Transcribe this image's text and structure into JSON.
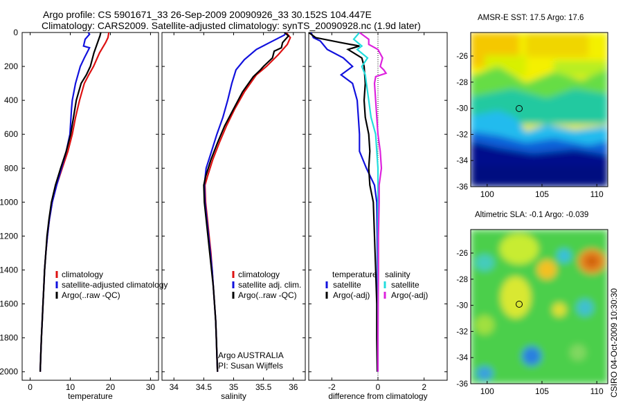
{
  "figure": {
    "title_line1": "Argo profile: CS 5901671_33 26-Sep-2009 20090926_33 30.152S 104.447E",
    "title_line2": "Climatology: CARS2009. Satellite-adjusted climatology: synTS_20090928.nc (1.9d later)",
    "credit": "CSIRO 04-Oct-2009 10:30:30",
    "argo_note": [
      "Argo AUSTRALIA",
      "PI: Susan Wijffels"
    ]
  },
  "colors": {
    "climatology": "#dd1111",
    "satellite": "#1111dd",
    "argo": "#000000",
    "sal_satellite": "#22dddd",
    "sal_argo": "#dd22dd"
  },
  "chart_data": [
    {
      "id": "temperature",
      "type": "line",
      "xlabel": "temperature",
      "ylabel": "",
      "xlim": [
        -2,
        32
      ],
      "ylim": [
        2050,
        0
      ],
      "xticks": [
        0,
        10,
        20,
        30
      ],
      "yticks": [
        0,
        200,
        400,
        600,
        800,
        1000,
        1200,
        1400,
        1600,
        1800,
        2000
      ],
      "legend": [
        "climatology",
        "satellite-adjusted climatology",
        "Argo(..raw -QC)"
      ],
      "series": [
        {
          "name": "climatology",
          "color": "climatology",
          "points": [
            [
              19.6,
              0
            ],
            [
              19.4,
              30
            ],
            [
              18.8,
              60
            ],
            [
              17.3,
              120
            ],
            [
              15.8,
              200
            ],
            [
              14.6,
              250
            ],
            [
              13.5,
              300
            ],
            [
              12.3,
              400
            ],
            [
              11.3,
              500
            ],
            [
              10.5,
              600
            ],
            [
              9.4,
              700
            ],
            [
              8.0,
              800
            ],
            [
              6.6,
              900
            ],
            [
              5.5,
              1000
            ],
            [
              4.8,
              1100
            ],
            [
              4.3,
              1200
            ],
            [
              3.9,
              1300
            ],
            [
              3.6,
              1400
            ],
            [
              3.4,
              1500
            ],
            [
              3.2,
              1600
            ],
            [
              3.0,
              1700
            ],
            [
              2.8,
              1800
            ],
            [
              2.65,
              1900
            ],
            [
              2.5,
              2000
            ]
          ]
        },
        {
          "name": "satellite-adjusted climatology",
          "color": "satellite",
          "points": [
            [
              14.5,
              0
            ],
            [
              14.8,
              10
            ],
            [
              13.7,
              40
            ],
            [
              13.3,
              80
            ],
            [
              14.8,
              90
            ],
            [
              13.5,
              150
            ],
            [
              12.5,
              200
            ],
            [
              11.3,
              300
            ],
            [
              10.5,
              400
            ],
            [
              10.3,
              450
            ],
            [
              9.9,
              600
            ],
            [
              9.0,
              700
            ],
            [
              7.8,
              800
            ],
            [
              6.6,
              900
            ],
            [
              5.5,
              1000
            ],
            [
              4.8,
              1100
            ],
            [
              4.3,
              1200
            ],
            [
              3.9,
              1300
            ],
            [
              3.6,
              1400
            ],
            [
              3.4,
              1500
            ],
            [
              3.2,
              1600
            ],
            [
              3.0,
              1700
            ],
            [
              2.8,
              1800
            ],
            [
              2.65,
              1900
            ],
            [
              2.5,
              2000
            ]
          ]
        },
        {
          "name": "Argo(..raw -QC)",
          "color": "argo",
          "points": [
            [
              17.6,
              0
            ],
            [
              17.4,
              20
            ],
            [
              16.8,
              60
            ],
            [
              15.9,
              120
            ],
            [
              15.0,
              200
            ],
            [
              14.0,
              250
            ],
            [
              12.7,
              300
            ],
            [
              11.5,
              400
            ],
            [
              10.8,
              500
            ],
            [
              10.1,
              600
            ],
            [
              9.0,
              700
            ],
            [
              7.6,
              800
            ],
            [
              6.3,
              900
            ],
            [
              5.3,
              1000
            ],
            [
              4.7,
              1100
            ],
            [
              4.2,
              1200
            ],
            [
              3.9,
              1300
            ],
            [
              3.6,
              1400
            ],
            [
              3.4,
              1500
            ],
            [
              3.2,
              1600
            ],
            [
              3.0,
              1700
            ],
            [
              2.8,
              1800
            ],
            [
              2.65,
              1900
            ],
            [
              2.5,
              2000
            ]
          ]
        }
      ]
    },
    {
      "id": "salinity",
      "type": "line",
      "xlabel": "salinity",
      "ylabel": "",
      "xlim": [
        33.8,
        36.2
      ],
      "ylim": [
        2050,
        0
      ],
      "xticks": [
        34,
        34.5,
        35,
        35.5,
        36
      ],
      "yticks": [],
      "legend": [
        "climatology",
        "satellite adj. clim.",
        "Argo(..raw -QC)"
      ],
      "series": [
        {
          "name": "climatology",
          "color": "climatology",
          "points": [
            [
              35.88,
              0
            ],
            [
              35.95,
              30
            ],
            [
              35.9,
              70
            ],
            [
              35.75,
              130
            ],
            [
              35.55,
              200
            ],
            [
              35.38,
              250
            ],
            [
              35.18,
              350
            ],
            [
              35.02,
              450
            ],
            [
              34.88,
              550
            ],
            [
              34.76,
              650
            ],
            [
              34.65,
              750
            ],
            [
              34.56,
              850
            ],
            [
              34.52,
              900
            ],
            [
              34.53,
              1000
            ],
            [
              34.56,
              1100
            ],
            [
              34.59,
              1200
            ],
            [
              34.62,
              1300
            ],
            [
              34.64,
              1400
            ],
            [
              34.66,
              1500
            ],
            [
              34.68,
              1600
            ],
            [
              34.7,
              1700
            ],
            [
              34.71,
              1800
            ],
            [
              34.72,
              1900
            ],
            [
              34.73,
              2000
            ]
          ]
        },
        {
          "name": "satellite adj. clim.",
          "color": "satellite",
          "points": [
            [
              35.88,
              0
            ],
            [
              35.85,
              15
            ],
            [
              35.6,
              60
            ],
            [
              35.38,
              100
            ],
            [
              35.18,
              160
            ],
            [
              35.04,
              220
            ],
            [
              34.97,
              300
            ],
            [
              34.9,
              400
            ],
            [
              34.82,
              500
            ],
            [
              34.72,
              600
            ],
            [
              34.63,
              700
            ],
            [
              34.54,
              800
            ],
            [
              34.51,
              900
            ],
            [
              34.52,
              1000
            ],
            [
              34.55,
              1100
            ],
            [
              34.58,
              1200
            ],
            [
              34.61,
              1300
            ],
            [
              34.64,
              1400
            ],
            [
              34.66,
              1500
            ],
            [
              34.68,
              1600
            ],
            [
              34.7,
              1700
            ],
            [
              34.71,
              1800
            ],
            [
              34.72,
              1900
            ],
            [
              34.73,
              2000
            ]
          ]
        },
        {
          "name": "Argo(..raw -QC)",
          "color": "argo",
          "points": [
            [
              35.85,
              0
            ],
            [
              35.92,
              20
            ],
            [
              35.82,
              60
            ],
            [
              35.8,
              90
            ],
            [
              35.68,
              110
            ],
            [
              35.65,
              150
            ],
            [
              35.5,
              200
            ],
            [
              35.45,
              220
            ],
            [
              35.33,
              260
            ],
            [
              35.15,
              350
            ],
            [
              35.0,
              450
            ],
            [
              34.85,
              550
            ],
            [
              34.73,
              650
            ],
            [
              34.62,
              750
            ],
            [
              34.53,
              850
            ],
            [
              34.5,
              900
            ],
            [
              34.51,
              1000
            ],
            [
              34.54,
              1100
            ],
            [
              34.57,
              1200
            ],
            [
              34.6,
              1300
            ],
            [
              34.63,
              1400
            ],
            [
              34.66,
              1500
            ],
            [
              34.68,
              1600
            ],
            [
              34.7,
              1700
            ],
            [
              34.71,
              1800
            ],
            [
              34.72,
              1900
            ],
            [
              34.73,
              2000
            ]
          ]
        }
      ]
    },
    {
      "id": "difference",
      "type": "line",
      "xlabel": "difference from climatology",
      "ylabel": "",
      "xlim": [
        -3,
        3
      ],
      "ylim": [
        2050,
        0
      ],
      "xticks": [
        -2,
        0,
        2
      ],
      "yticks": [],
      "zero_line": "dotted",
      "legend_groups": [
        {
          "heading": "temperature",
          "items": [
            "satellite",
            "Argo(-adj)"
          ]
        },
        {
          "heading": "salinity",
          "items": [
            "satellite",
            "Argo(-adj)"
          ]
        }
      ],
      "series": [
        {
          "name": "satellite",
          "group": "temperature",
          "color": "satellite",
          "points": [
            [
              -2.9,
              0
            ],
            [
              -2.8,
              30
            ],
            [
              -2.5,
              50
            ],
            [
              -2.2,
              100
            ],
            [
              -1.5,
              150
            ],
            [
              -1.1,
              200
            ],
            [
              -1.6,
              250
            ],
            [
              -1.1,
              300
            ],
            [
              -0.9,
              400
            ],
            [
              -0.85,
              500
            ],
            [
              -0.8,
              600
            ],
            [
              -0.8,
              700
            ],
            [
              -0.5,
              800
            ],
            [
              -0.15,
              900
            ],
            [
              -0.05,
              1000
            ],
            [
              -0.03,
              1200
            ],
            [
              -0.02,
              1400
            ],
            [
              -0.02,
              1600
            ],
            [
              -0.01,
              1800
            ],
            [
              -0.01,
              2000
            ]
          ]
        },
        {
          "name": "Argo(-adj)",
          "group": "temperature",
          "color": "argo",
          "points": [
            [
              -3.0,
              0
            ],
            [
              -2.7,
              30
            ],
            [
              -1.6,
              60
            ],
            [
              -0.8,
              80
            ],
            [
              -1.3,
              100
            ],
            [
              -0.7,
              150
            ],
            [
              -0.6,
              200
            ],
            [
              -0.55,
              300
            ],
            [
              -0.6,
              400
            ],
            [
              -0.55,
              500
            ],
            [
              -0.4,
              600
            ],
            [
              -0.35,
              700
            ],
            [
              -0.4,
              800
            ],
            [
              -0.35,
              900
            ],
            [
              -0.2,
              1000
            ],
            [
              -0.15,
              1200
            ],
            [
              -0.1,
              1400
            ],
            [
              -0.05,
              1600
            ],
            [
              -0.05,
              1800
            ],
            [
              -0.03,
              2000
            ]
          ]
        },
        {
          "name": "satellite",
          "group": "salinity",
          "color": "sal_satellite",
          "points": [
            [
              -0.8,
              0
            ],
            [
              -1.05,
              40
            ],
            [
              -0.7,
              80
            ],
            [
              -0.9,
              100
            ],
            [
              -0.45,
              150
            ],
            [
              -0.7,
              200
            ],
            [
              -0.55,
              250
            ],
            [
              -0.5,
              300
            ],
            [
              -0.4,
              400
            ],
            [
              -0.3,
              500
            ],
            [
              -0.1,
              600
            ],
            [
              -0.05,
              700
            ],
            [
              0.0,
              800
            ],
            [
              0.0,
              900
            ],
            [
              0.0,
              1000
            ],
            [
              0.0,
              1200
            ],
            [
              0.0,
              1400
            ],
            [
              0.0,
              1600
            ],
            [
              0.0,
              1800
            ],
            [
              0.0,
              2000
            ]
          ]
        },
        {
          "name": "Argo(-adj)",
          "group": "salinity",
          "color": "sal_argo",
          "points": [
            [
              -0.8,
              0
            ],
            [
              -0.4,
              40
            ],
            [
              -0.4,
              70
            ],
            [
              0.0,
              100
            ],
            [
              0.2,
              150
            ],
            [
              0.1,
              200
            ],
            [
              0.25,
              220
            ],
            [
              0.35,
              240
            ],
            [
              -0.1,
              260
            ],
            [
              -0.15,
              300
            ],
            [
              -0.1,
              400
            ],
            [
              -0.05,
              500
            ],
            [
              0.0,
              600
            ],
            [
              0.1,
              700
            ],
            [
              0.15,
              800
            ],
            [
              0.05,
              900
            ],
            [
              0.05,
              1000
            ],
            [
              0.02,
              1200
            ],
            [
              0.02,
              1400
            ],
            [
              0.01,
              1600
            ],
            [
              0.0,
              1800
            ],
            [
              0.0,
              2000
            ]
          ]
        }
      ]
    },
    {
      "id": "sst_map",
      "type": "heatmap",
      "title": "AMSR-E SST: 17.5 Argo: 17.6",
      "xlim": [
        98.5,
        111
      ],
      "ylim": [
        -36,
        -24.2
      ],
      "xticks": [
        100,
        105,
        110
      ],
      "yticks": [
        -26,
        -28,
        -30,
        -32,
        -34,
        -36
      ],
      "marker": {
        "lon": 104.447,
        "lat": -30.152
      }
    },
    {
      "id": "sla_map",
      "type": "heatmap",
      "title": "Altimetric SLA: -0.1 Argo: -0.039",
      "xlim": [
        98.5,
        111
      ],
      "ylim": [
        -36,
        -24.2
      ],
      "xticks": [
        100,
        105,
        110
      ],
      "yticks": [
        -26,
        -28,
        -30,
        -32,
        -34,
        -36
      ],
      "marker": {
        "lon": 104.447,
        "lat": -30.152
      }
    }
  ]
}
